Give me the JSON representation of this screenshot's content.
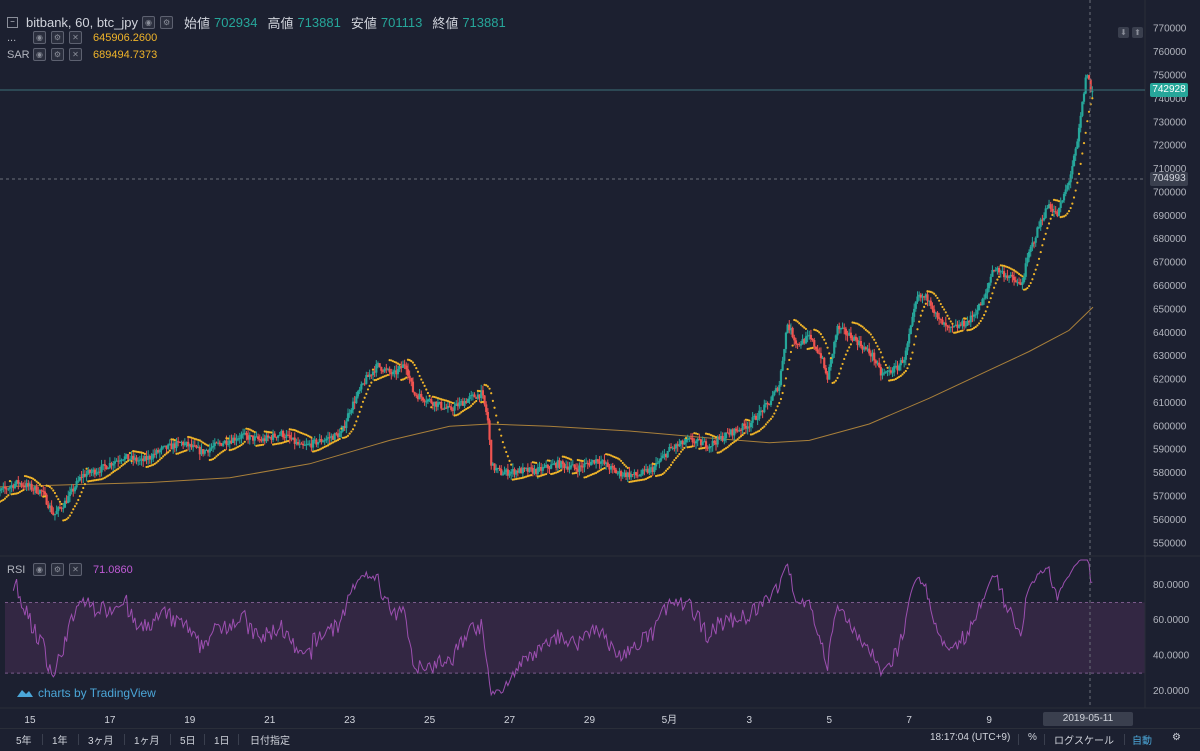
{
  "header": {
    "symbol": "bitbank, 60, btc_jpy",
    "open_label": "始値",
    "open_value": "702934",
    "high_label": "高値",
    "high_value": "713881",
    "low_label": "安値",
    "low_value": "701113",
    "close_label": "終値",
    "close_value": "713881"
  },
  "indicators": {
    "ma_name": "...",
    "ma_value": "645906.2600",
    "sar_name": "SAR",
    "sar_value": "689494.7373",
    "rsi_name": "RSI",
    "rsi_value": "71.0860"
  },
  "price_tags": {
    "last": "742928",
    "crosshair": "704993"
  },
  "crosshair_date": "2019-05-11 10:00:00",
  "watermark": "charts by TradingView",
  "timeframes": [
    "5年",
    "1年",
    "3ヶ月",
    "1ヶ月",
    "5日",
    "1日",
    "日付指定"
  ],
  "status": {
    "clock": "18:17:04 (UTC+9)",
    "percent": "%",
    "log": "ログスケール",
    "auto": "自動"
  },
  "colors": {
    "up": "#26a69a",
    "down": "#ef5350",
    "sar": "#f0b429",
    "ma": "#b98b3c",
    "rsi": "#9c4fb0",
    "rsi_band": "#3b2a4a",
    "background": "#1c2030"
  },
  "chart_data": [
    {
      "type": "candlestick",
      "title": "bitbank, 60, btc_jpy",
      "x_ticks": [
        "15",
        "17",
        "19",
        "21",
        "23",
        "25",
        "27",
        "29",
        "5月",
        "3",
        "5",
        "7",
        "9"
      ],
      "y_ticks": [
        550000,
        560000,
        570000,
        580000,
        590000,
        600000,
        610000,
        620000,
        630000,
        640000,
        650000,
        660000,
        670000,
        680000,
        690000,
        700000,
        710000,
        720000,
        730000,
        740000,
        750000,
        760000,
        770000
      ],
      "y_tick_labels": [
        "550000",
        "560000",
        "570000",
        "580000",
        "590000",
        "600000",
        "610000",
        "620000",
        "630000",
        "640000",
        "650000",
        "660000",
        "670000",
        "680000",
        "690000",
        "700000",
        "710000",
        "720000",
        "730000",
        "740000",
        "750000",
        "760000",
        "770000"
      ],
      "ylim": [
        545000,
        775000
      ],
      "x_range_days": [
        14.0,
        41.6
      ],
      "close_path": [
        [
          14.0,
          570000
        ],
        [
          14.7,
          576000
        ],
        [
          15.3,
          572000
        ],
        [
          15.6,
          562000
        ],
        [
          15.9,
          568000
        ],
        [
          16.3,
          579000
        ],
        [
          16.8,
          582000
        ],
        [
          17.3,
          587000
        ],
        [
          17.8,
          585000
        ],
        [
          18.3,
          590000
        ],
        [
          18.8,
          593000
        ],
        [
          19.3,
          589000
        ],
        [
          19.8,
          593000
        ],
        [
          20.3,
          596000
        ],
        [
          20.8,
          594000
        ],
        [
          21.3,
          597000
        ],
        [
          21.8,
          591000
        ],
        [
          22.3,
          594000
        ],
        [
          22.8,
          597000
        ],
        [
          23.0,
          607000
        ],
        [
          23.4,
          620000
        ],
        [
          23.7,
          626000
        ],
        [
          24.1,
          622000
        ],
        [
          24.4,
          627000
        ],
        [
          24.6,
          614000
        ],
        [
          25.0,
          611000
        ],
        [
          25.5,
          607000
        ],
        [
          26.0,
          612000
        ],
        [
          26.3,
          614000
        ],
        [
          26.45,
          604000
        ],
        [
          26.55,
          583000
        ],
        [
          26.8,
          580000
        ],
        [
          27.2,
          581000
        ],
        [
          27.7,
          581000
        ],
        [
          28.2,
          584000
        ],
        [
          28.7,
          582000
        ],
        [
          29.2,
          586000
        ],
        [
          29.7,
          580000
        ],
        [
          30.2,
          579000
        ],
        [
          30.6,
          582000
        ],
        [
          31.0,
          590000
        ],
        [
          31.5,
          594000
        ],
        [
          32.0,
          592000
        ],
        [
          32.5,
          597000
        ],
        [
          33.0,
          601000
        ],
        [
          33.5,
          610000
        ],
        [
          33.75,
          618000
        ],
        [
          33.95,
          644000
        ],
        [
          34.2,
          635000
        ],
        [
          34.5,
          638000
        ],
        [
          34.8,
          630000
        ],
        [
          34.95,
          620000
        ],
        [
          35.2,
          642000
        ],
        [
          35.6,
          638000
        ],
        [
          35.9,
          633000
        ],
        [
          36.1,
          630000
        ],
        [
          36.3,
          622000
        ],
        [
          36.7,
          625000
        ],
        [
          36.9,
          630000
        ],
        [
          37.2,
          655000
        ],
        [
          37.5,
          655000
        ],
        [
          37.7,
          646000
        ],
        [
          38.0,
          641000
        ],
        [
          38.5,
          645000
        ],
        [
          38.9,
          655000
        ],
        [
          39.1,
          668000
        ],
        [
          39.5,
          664000
        ],
        [
          39.8,
          660000
        ],
        [
          40.0,
          674000
        ],
        [
          40.3,
          688000
        ],
        [
          40.5,
          695000
        ],
        [
          40.7,
          690000
        ],
        [
          41.0,
          705000
        ],
        [
          41.2,
          720000
        ],
        [
          41.35,
          740000
        ],
        [
          41.45,
          752000
        ],
        [
          41.55,
          742928
        ]
      ],
      "ma_path": [
        [
          14.0,
          574000
        ],
        [
          16.0,
          575000
        ],
        [
          18.0,
          576000
        ],
        [
          20.0,
          578000
        ],
        [
          22.0,
          584000
        ],
        [
          24.0,
          594000
        ],
        [
          25.5,
          600000
        ],
        [
          26.5,
          601000
        ],
        [
          28.0,
          600000
        ],
        [
          30.0,
          598000
        ],
        [
          32.0,
          595000
        ],
        [
          33.5,
          593000
        ],
        [
          34.5,
          594000
        ],
        [
          36.0,
          601000
        ],
        [
          37.5,
          612000
        ],
        [
          39.0,
          624000
        ],
        [
          40.0,
          632000
        ],
        [
          41.0,
          641000
        ],
        [
          41.6,
          651000
        ]
      ],
      "rsi": {
        "name": "RSI",
        "last": 71.086,
        "overbought": 70,
        "oversold": 30,
        "y_ticks": [
          20,
          40,
          60,
          80
        ],
        "y_tick_labels": [
          "20.0000",
          "40.0000",
          "60.0000",
          "80.0000"
        ],
        "ylim": [
          12,
          94
        ]
      }
    }
  ]
}
